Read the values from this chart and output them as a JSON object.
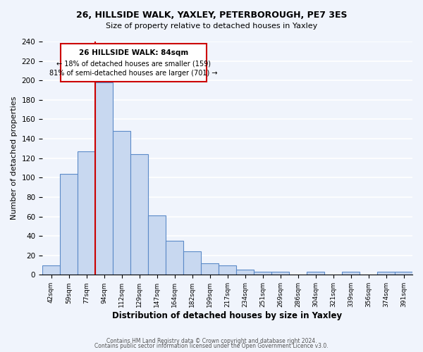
{
  "title1": "26, HILLSIDE WALK, YAXLEY, PETERBOROUGH, PE7 3ES",
  "title2": "Size of property relative to detached houses in Yaxley",
  "xlabel": "Distribution of detached houses by size in Yaxley",
  "ylabel": "Number of detached properties",
  "bin_labels": [
    "42sqm",
    "59sqm",
    "77sqm",
    "94sqm",
    "112sqm",
    "129sqm",
    "147sqm",
    "164sqm",
    "182sqm",
    "199sqm",
    "217sqm",
    "234sqm",
    "251sqm",
    "269sqm",
    "286sqm",
    "304sqm",
    "321sqm",
    "339sqm",
    "356sqm",
    "374sqm",
    "391sqm"
  ],
  "bar_heights": [
    10,
    104,
    127,
    198,
    148,
    124,
    61,
    35,
    24,
    12,
    10,
    5,
    3,
    3,
    0,
    3,
    0,
    3,
    0,
    3,
    3
  ],
  "bar_color": "#c8d8f0",
  "bar_edge_color": "#5b8ac8",
  "ylim": [
    0,
    240
  ],
  "yticks": [
    0,
    20,
    40,
    60,
    80,
    100,
    120,
    140,
    160,
    180,
    200,
    220,
    240
  ],
  "property_label": "26 HILLSIDE WALK: 84sqm",
  "annotation_line1": "← 18% of detached houses are smaller (159)",
  "annotation_line2": "81% of semi-detached houses are larger (701) →",
  "vline_color": "#cc0000",
  "box_color": "#cc0000",
  "footer1": "Contains HM Land Registry data © Crown copyright and database right 2024.",
  "footer2": "Contains public sector information licensed under the Open Government Licence v3.0.",
  "background_color": "#f0f4fc",
  "grid_color": "#ffffff"
}
